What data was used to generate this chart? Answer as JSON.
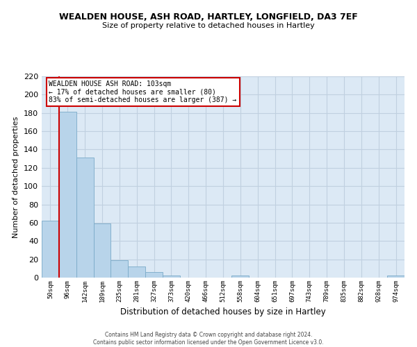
{
  "title": "WEALDEN HOUSE, ASH ROAD, HARTLEY, LONGFIELD, DA3 7EF",
  "subtitle": "Size of property relative to detached houses in Hartley",
  "xlabel": "Distribution of detached houses by size in Hartley",
  "ylabel": "Number of detached properties",
  "bin_labels": [
    "50sqm",
    "96sqm",
    "142sqm",
    "189sqm",
    "235sqm",
    "281sqm",
    "327sqm",
    "373sqm",
    "420sqm",
    "466sqm",
    "512sqm",
    "558sqm",
    "604sqm",
    "651sqm",
    "697sqm",
    "743sqm",
    "789sqm",
    "835sqm",
    "882sqm",
    "928sqm",
    "974sqm"
  ],
  "bar_heights": [
    62,
    181,
    131,
    59,
    19,
    12,
    6,
    2,
    0,
    0,
    0,
    2,
    0,
    0,
    0,
    0,
    0,
    0,
    0,
    0,
    2
  ],
  "bar_color": "#b8d4ea",
  "bar_edge_color": "#7aaac8",
  "property_line_label": "WEALDEN HOUSE ASH ROAD: 103sqm",
  "smaller_pct": "17%",
  "smaller_count": 80,
  "larger_pct": "83%",
  "larger_count": 387,
  "annotation_box_color": "#ffffff",
  "annotation_box_edge": "#cc0000",
  "property_line_color": "#cc0000",
  "bg_color": "#dce9f5",
  "grid_color": "#c0d0e0",
  "ylim": [
    0,
    220
  ],
  "yticks": [
    0,
    20,
    40,
    60,
    80,
    100,
    120,
    140,
    160,
    180,
    200,
    220
  ],
  "footer_line1": "Contains HM Land Registry data © Crown copyright and database right 2024.",
  "footer_line2": "Contains public sector information licensed under the Open Government Licence v3.0."
}
